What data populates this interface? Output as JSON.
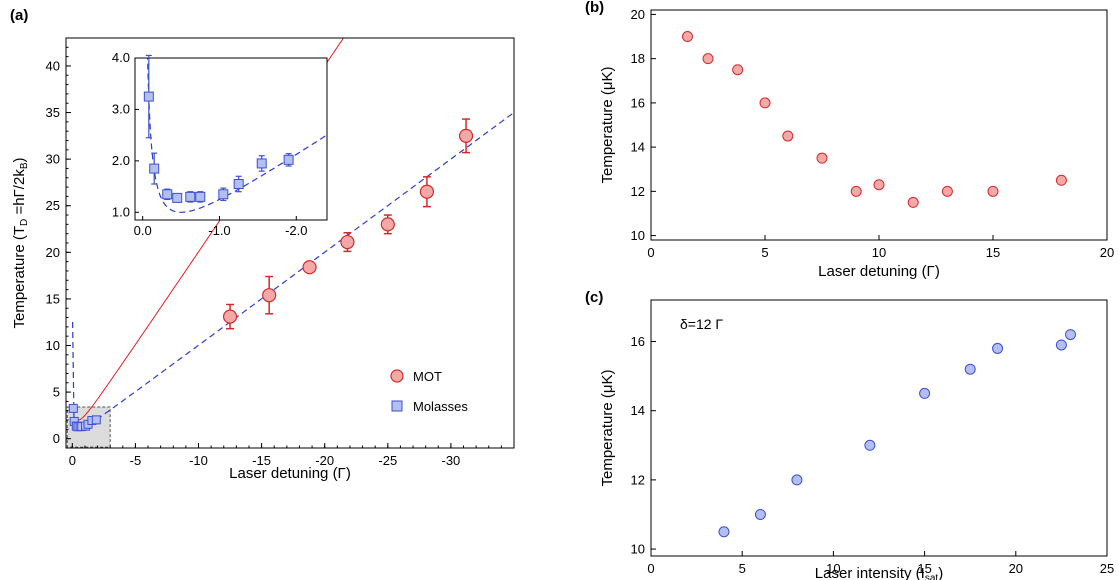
{
  "chart_data": [
    {
      "panel": "(a)",
      "type": "scatter",
      "xlabel": "Laser detuning (Γ)",
      "ylabel_main": "Temperature  (T",
      "ylabel_sub1": "D",
      "ylabel_mid": " =hΓ/2k",
      "ylabel_sub2": "B",
      "ylabel_end": ")",
      "xlim": [
        0.5,
        -35
      ],
      "ylim": [
        -1,
        43
      ],
      "xticks": [
        0,
        -5,
        -10,
        -15,
        -20,
        -25,
        -30
      ],
      "xtick_labels": [
        "0",
        "-5",
        "-10",
        "-15",
        "-20",
        "-25",
        "-30"
      ],
      "yticks": [
        0,
        5,
        10,
        15,
        20,
        25,
        30,
        35,
        40
      ],
      "ytick_labels": [
        "0",
        "5",
        "10",
        "15",
        "20",
        "25",
        "30",
        "35",
        "40"
      ],
      "legend_position": "bottom-right",
      "series": [
        {
          "name": "MOT",
          "marker": "circle",
          "color": "#f4a9a9",
          "edge": "#d22b2b",
          "x": [
            -12.5,
            -15.6,
            -18.8,
            -21.8,
            -25.0,
            -28.1,
            -31.2
          ],
          "y": [
            13.1,
            15.4,
            18.4,
            21.1,
            23.0,
            26.5,
            32.5
          ],
          "yerr": [
            1.3,
            2.0,
            0.5,
            1.0,
            1.0,
            1.6,
            1.8
          ]
        },
        {
          "name": "Molasses",
          "marker": "square",
          "color": "#b3bff0",
          "edge": "#3c50d0",
          "x": [
            -0.08,
            -0.15,
            -0.32,
            -0.45,
            -0.62,
            -0.75,
            -1.05,
            -1.25,
            -1.55,
            -1.9
          ],
          "y": [
            3.25,
            1.85,
            1.35,
            1.28,
            1.3,
            1.3,
            1.35,
            1.55,
            1.95,
            2.02
          ],
          "yerr": [
            0.8,
            0.3,
            0.1,
            0.08,
            0.1,
            0.1,
            0.12,
            0.15,
            0.15,
            0.12
          ]
        }
      ],
      "inset": {
        "xlim": [
          0.1,
          -2.4
        ],
        "ylim": [
          0.85,
          4.0
        ],
        "xticks": [
          0,
          -1,
          -2
        ],
        "xtick_labels": [
          "0.0",
          "-1.0",
          "-2.0"
        ],
        "yticks": [
          1,
          2,
          3,
          4
        ],
        "ytick_labels": [
          "1.0",
          "2.0",
          "3.0",
          "4.0"
        ]
      }
    },
    {
      "panel": "(b)",
      "type": "scatter",
      "xlabel": "Laser detuning (Γ)",
      "ylabel": "Temperature  (μK)",
      "xlim": [
        0,
        20
      ],
      "ylim": [
        9.8,
        20.2
      ],
      "xticks": [
        0,
        5,
        10,
        15,
        20
      ],
      "xtick_labels": [
        "0",
        "5",
        "10",
        "15",
        "20"
      ],
      "yticks": [
        10,
        12,
        14,
        16,
        18,
        20
      ],
      "ytick_labels": [
        "10",
        "12",
        "14",
        "16",
        "18",
        "20"
      ],
      "series": [
        {
          "marker": "circle",
          "color": "#f4a9a9",
          "edge": "#d22b2b",
          "x": [
            1.6,
            2.5,
            3.8,
            5.0,
            6.0,
            7.5,
            9.0,
            10.0,
            11.5,
            13.0,
            15.0,
            18.0
          ],
          "y": [
            19.0,
            18.0,
            17.5,
            16.0,
            14.5,
            13.5,
            12.0,
            12.3,
            11.5,
            12.0,
            12.0,
            12.5
          ]
        }
      ]
    },
    {
      "panel": "(c)",
      "type": "scatter",
      "xlabel_main": "Laser intensity (I",
      "xlabel_sub": "sat",
      "xlabel_end": ")",
      "ylabel": "Temperature  (μK)",
      "annotation": "δ=12 Γ",
      "xlim": [
        0,
        25
      ],
      "ylim": [
        9.8,
        17.2
      ],
      "xticks": [
        0,
        5,
        10,
        15,
        20,
        25
      ],
      "xtick_labels": [
        "0",
        "5",
        "10",
        "15",
        "20",
        "25"
      ],
      "yticks": [
        10,
        12,
        14,
        16
      ],
      "ytick_labels": [
        "10",
        "12",
        "14",
        "16"
      ],
      "series": [
        {
          "marker": "circle",
          "color": "#b3bff0",
          "edge": "#3c50d0",
          "x": [
            4,
            6,
            8,
            12,
            15,
            17.5,
            19,
            22.5,
            23
          ],
          "y": [
            10.5,
            11.0,
            12.0,
            13.0,
            14.5,
            15.2,
            15.8,
            15.9,
            16.2
          ]
        }
      ]
    }
  ]
}
